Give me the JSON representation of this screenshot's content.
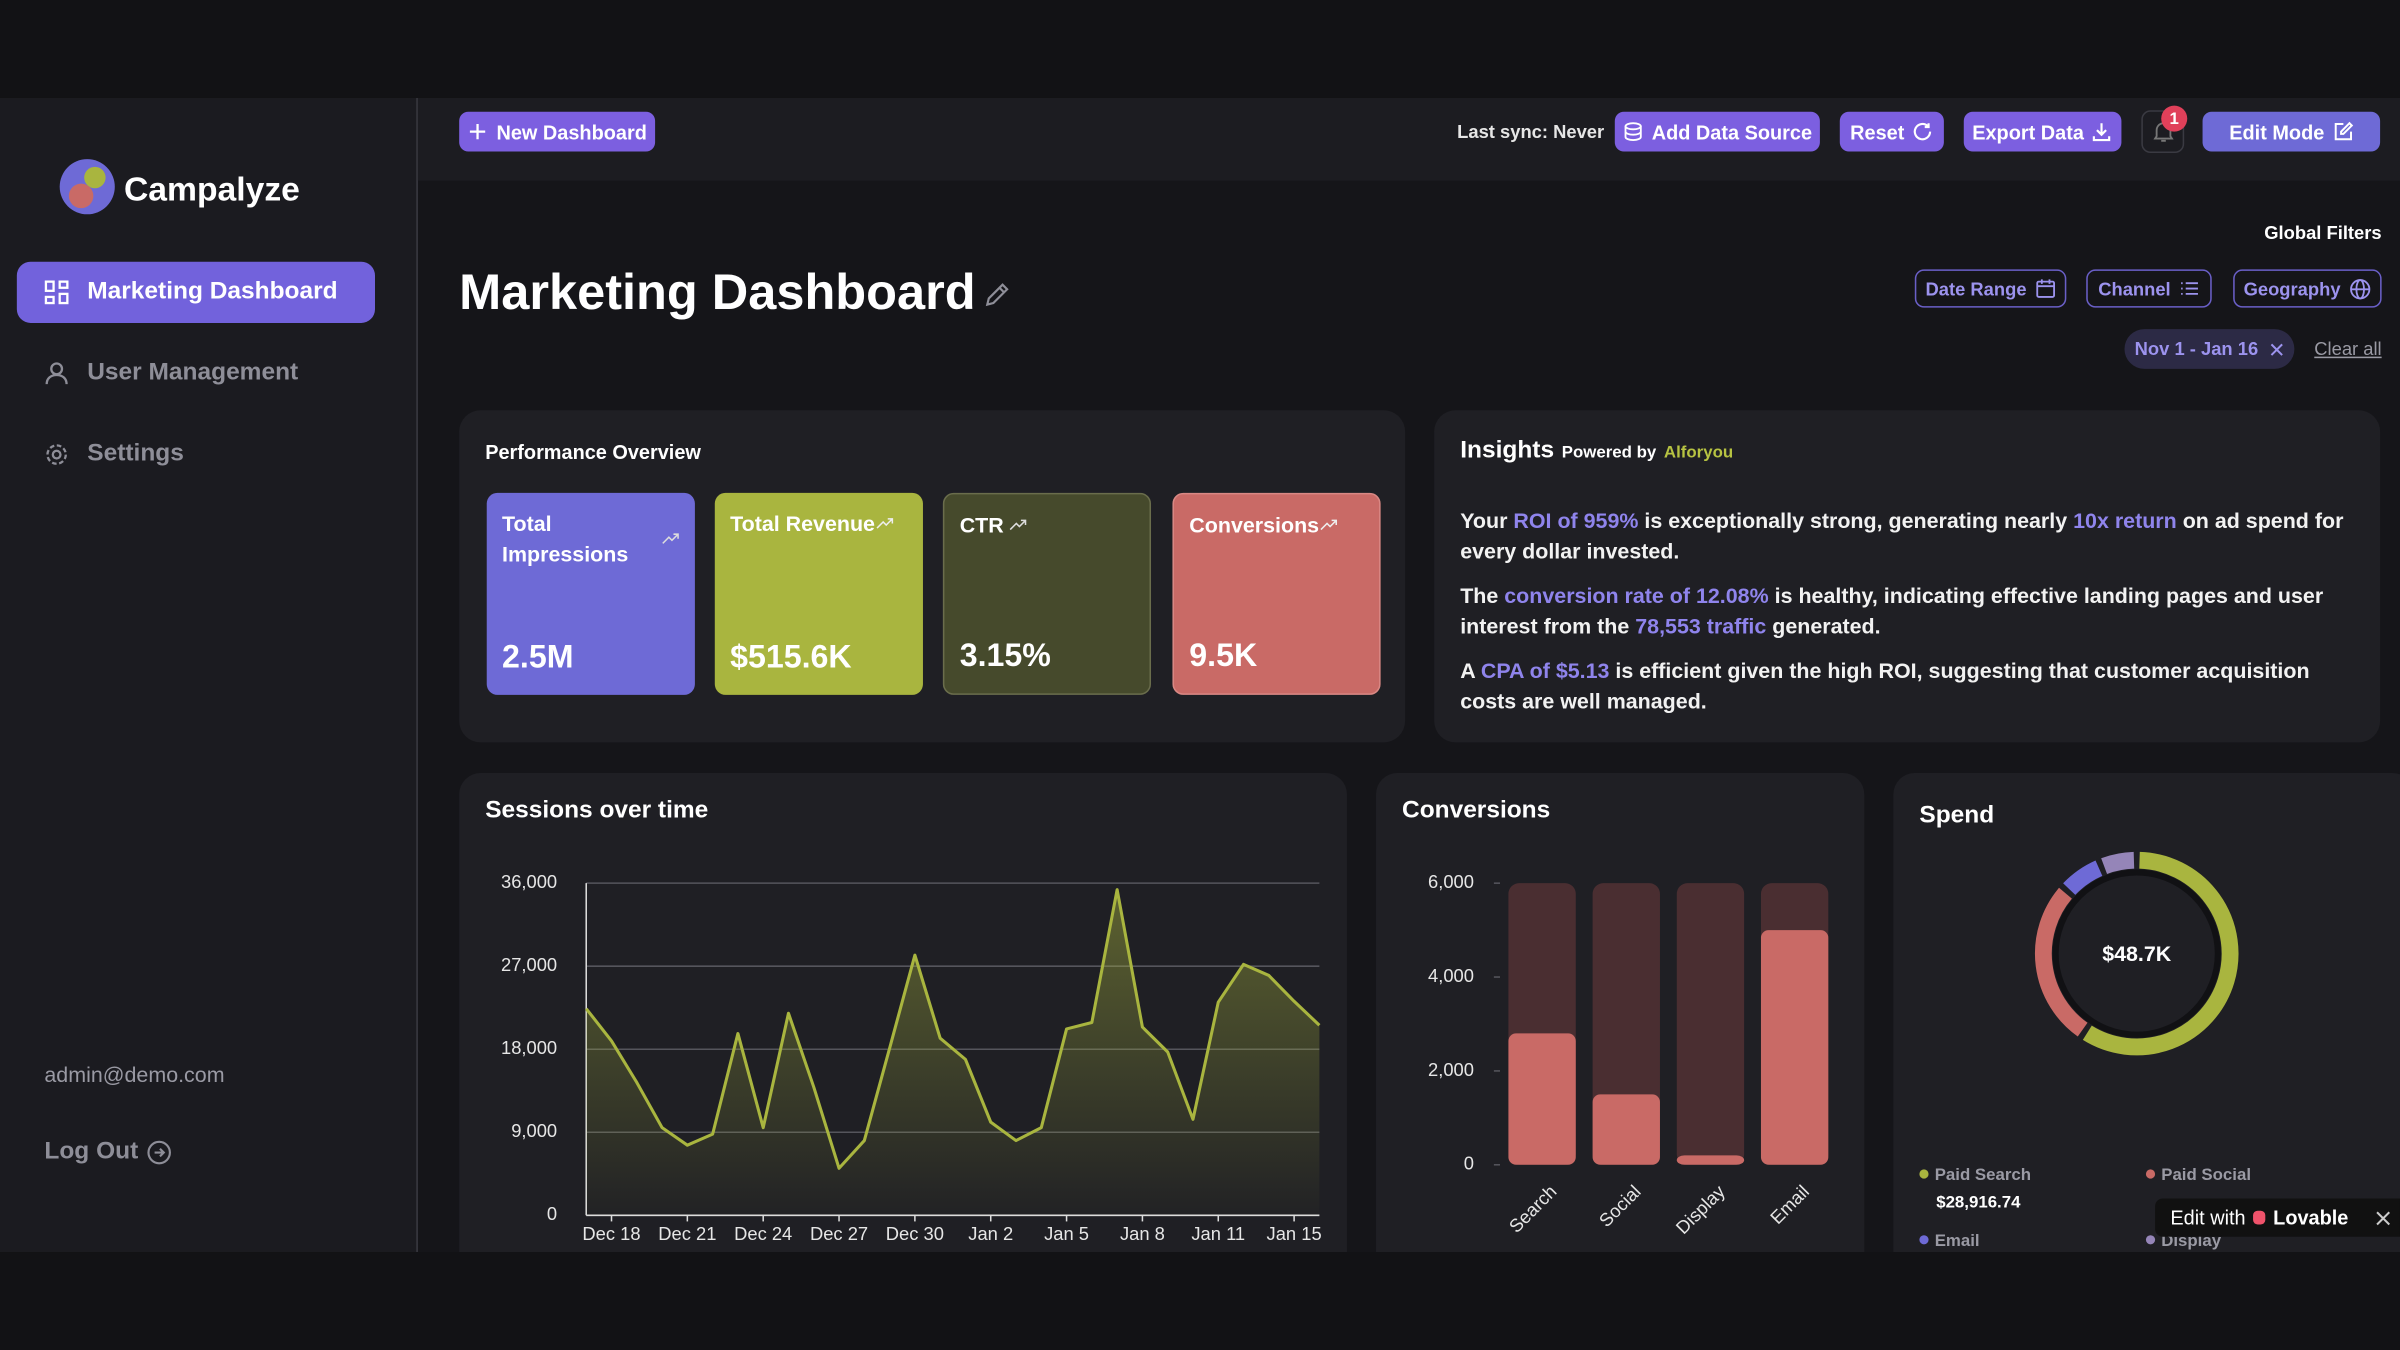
{
  "sidebar": {
    "brand": "Campalyze",
    "nav": [
      "Marketing Dashboard",
      "User Management",
      "Settings"
    ],
    "email": "admin@demo.com",
    "logout": "Log Out"
  },
  "topbar": {
    "new_dashboard": "New Dashboard",
    "last_sync": "Last sync: Never",
    "add_source": "Add Data Source",
    "reset": "Reset",
    "export": "Export Data",
    "notifications": "1",
    "edit_mode": "Edit Mode"
  },
  "header": {
    "title": "Marketing Dashboard",
    "global_filters": "Global Filters",
    "filters": [
      "Date Range",
      "Channel",
      "Geography"
    ],
    "active_filter": "Nov 1 - Jan 16",
    "clear_all": "Clear all"
  },
  "performance": {
    "title": "Performance Overview",
    "cards": [
      {
        "label": "Total Impressions",
        "value": "2.5M"
      },
      {
        "label": "Total Revenue",
        "value": "$515.6K"
      },
      {
        "label": "CTR",
        "value": "3.15%"
      },
      {
        "label": "Conversions",
        "value": "9.5K"
      }
    ]
  },
  "insights": {
    "title": "Insights",
    "powered_by": "Powered by",
    "provider": "Alforyou",
    "paragraphs": [
      [
        {
          "text": "Your ",
          "accent": false
        },
        {
          "text": "ROI of 959%",
          "accent": true
        },
        {
          "text": " is exceptionally strong, generating nearly ",
          "accent": false
        },
        {
          "text": "10x return",
          "accent": true
        },
        {
          "text": " on ad spend for every dollar invested.",
          "accent": false
        }
      ],
      [
        {
          "text": "The ",
          "accent": false
        },
        {
          "text": "conversion rate of 12.08%",
          "accent": true
        },
        {
          "text": " is healthy, indicating effective landing pages and user interest from the ",
          "accent": false
        },
        {
          "text": "78,553 traffic",
          "accent": true
        },
        {
          "text": " generated.",
          "accent": false
        }
      ],
      [
        {
          "text": "A ",
          "accent": false
        },
        {
          "text": "CPA of $5.13",
          "accent": true
        },
        {
          "text": " is efficient given the high ROI, suggesting that customer acquisition costs are well managed.",
          "accent": false
        }
      ]
    ]
  },
  "chart_data": [
    {
      "type": "line",
      "title": "Sessions over time",
      "area": true,
      "color": "#a9b53f",
      "grid": true,
      "categories": [
        null,
        "Dec 18",
        null,
        null,
        "Dec 21",
        null,
        null,
        "Dec 24",
        null,
        null,
        "Dec 27",
        null,
        null,
        "Dec 30",
        null,
        null,
        "Jan 2",
        null,
        null,
        "Jan 5",
        null,
        null,
        "Jan 8",
        null,
        null,
        "Jan 11",
        null,
        null,
        "Jan 15",
        null
      ],
      "values": [
        22400,
        18900,
        14400,
        9500,
        7600,
        8800,
        19700,
        9500,
        21900,
        13900,
        5100,
        8100,
        18100,
        28200,
        19200,
        16900,
        10100,
        8100,
        9500,
        20200,
        20900,
        35300,
        20400,
        17700,
        10400,
        23100,
        27200,
        26000,
        23200,
        20600
      ],
      "ylim": [
        0,
        36000
      ],
      "yticks": [
        0,
        {
          "value": 9000,
          "label": "9,000"
        },
        {
          "value": 18000,
          "label": "18,000"
        },
        {
          "value": 27000,
          "label": "27,000"
        },
        {
          "value": 36000,
          "label": "36,000"
        }
      ]
    },
    {
      "type": "bar",
      "title": "Conversions",
      "color": "#c96a66",
      "track_color": "#4a2e31",
      "categories": [
        "Search",
        "Social",
        "Display",
        "Email"
      ],
      "values": [
        2800,
        1500,
        200,
        5000
      ],
      "ylim": [
        0,
        6000
      ],
      "yticks": [
        0,
        {
          "value": 2000,
          "label": "2,000"
        },
        {
          "value": 4000,
          "label": "4,000"
        },
        {
          "value": 6000,
          "label": "6,000"
        }
      ]
    },
    {
      "type": "donut",
      "title": "Spend",
      "center_label": "$48.7K",
      "categories": [
        "Paid Search",
        "Paid Social",
        "Email",
        "Display"
      ],
      "values": [
        28916.74,
        13300,
        3500,
        3000
      ],
      "value_labels": [
        "$28,916.74",
        null,
        null,
        null
      ],
      "colors": [
        "#a9b53f",
        "#c96a66",
        "#6e6ad6",
        "#9585b8"
      ]
    }
  ],
  "badge": {
    "text": "Edit with",
    "brand": "Lovable"
  }
}
